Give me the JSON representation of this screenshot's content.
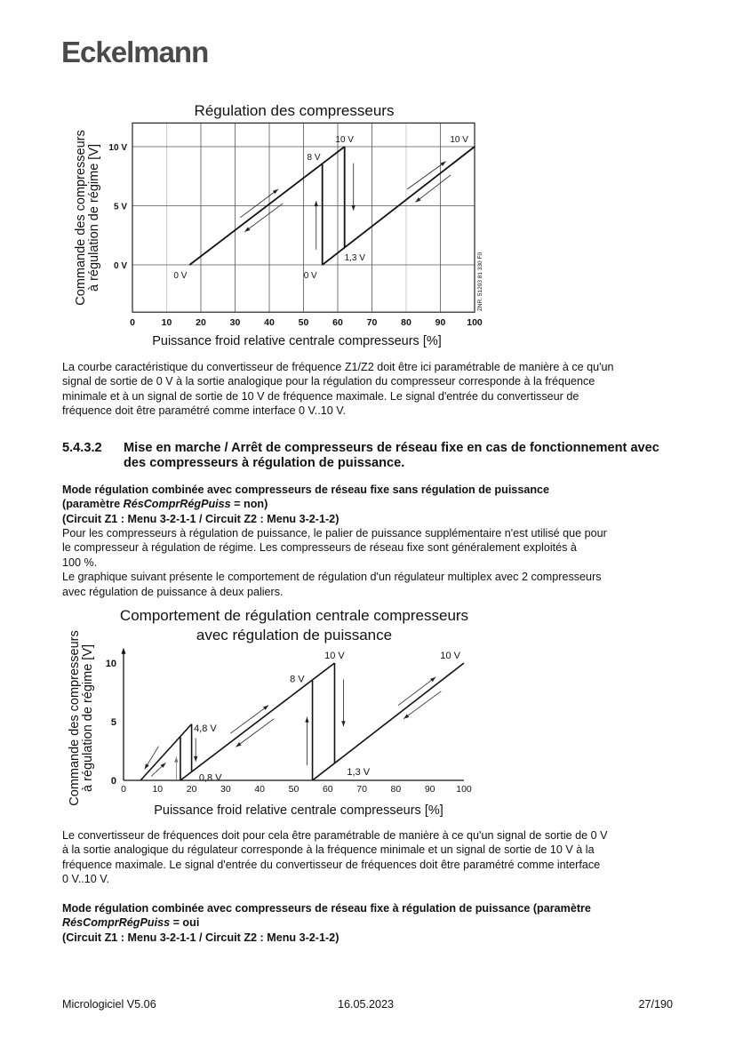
{
  "header": {
    "logo": "Eckelmann"
  },
  "para1": [
    "La courbe caractéristique du convertisseur de fréquence Z1/Z2 doit être ici paramétrable de manière à ce qu'un",
    "signal de sortie de 0 V à la sortie analogique pour la régulation du compresseur corresponde à la fréquence",
    "minimale et à un signal de sortie de 10 V de fréquence maximale. Le signal d'entrée du convertisseur de",
    "fréquence doit être paramétré comme interface 0 V..10 V."
  ],
  "section": {
    "number": "5.4.3.2",
    "title_line1": "Mise en marche / Arrêt de compresseurs de réseau fixe en cas de fonctionnement avec",
    "title_line2": "des compresseurs à régulation de puissance."
  },
  "mode1": {
    "line1": "Mode régulation combinée avec compresseurs de réseau fixe sans régulation de puissance",
    "line2_pre": "(paramètre ",
    "param": "RésComprRégPuiss",
    "line2_post": " = non)",
    "line3": "(Circuit Z1 : Menu 3-2-1-1 / Circuit Z2 : Menu 3-2-1-2)"
  },
  "para2": [
    "Pour les compresseurs à régulation de puissance, le palier de puissance supplémentaire n'est utilisé que pour",
    "le compresseur à régulation de régime. Les compresseurs de réseau fixe sont généralement exploités à",
    "100 %.",
    "Le graphique suivant présente le comportement de régulation d'un régulateur multiplex avec 2 compresseurs",
    "avec régulation de puissance à deux paliers."
  ],
  "para3": [
    "Le convertisseur de fréquences doit pour cela être paramétrable de manière à ce qu'un signal de sortie de 0 V",
    "à la sortie analogique du régulateur corresponde à la fréquence minimale et un signal de sortie de 10 V à la",
    "fréquence maximale. Le signal d'entrée du convertisseur de fréquences doit être paramétré comme interface",
    "0 V..10 V."
  ],
  "mode2": {
    "line1": "Mode régulation combinée avec compresseurs de réseau fixe à régulation de puissance (paramètre",
    "param": "RésComprRégPuiss",
    "line2_post": " = oui",
    "line3": "(Circuit Z1 : Menu 3-2-1-1 / Circuit Z2 : Menu 3-2-1-2)"
  },
  "footer": {
    "left": "Micrologiciel V5.06",
    "center": "16.05.2023",
    "right": "27/190"
  },
  "chart_data": [
    {
      "type": "line",
      "title": "Régulation des compresseurs",
      "xlabel": "Puissance froid relative centrale compresseurs [%]",
      "ylabel": [
        "Commande des compresseurs",
        "à régulation de régime [V]"
      ],
      "xlim": [
        0,
        100
      ],
      "ylim": [
        -4,
        12
      ],
      "xticks": [
        "0",
        "10",
        "20",
        "30",
        "40",
        "50",
        "60",
        "70",
        "80",
        "90",
        "100"
      ],
      "yticks": [
        {
          "v": 10,
          "label": "10 V"
        },
        {
          "v": 5,
          "label": "5 V"
        },
        {
          "v": 0,
          "label": "0 V"
        }
      ],
      "grid": true,
      "code": "ZNR. 51203 81 330 F0",
      "segments": [
        [
          [
            16.7,
            0
          ],
          [
            62,
            10
          ]
        ],
        [
          [
            55.5,
            8.5
          ],
          [
            55.5,
            0
          ]
        ],
        [
          [
            55.5,
            0
          ],
          [
            100,
            10
          ]
        ],
        [
          [
            62,
            10
          ],
          [
            62,
            1.5
          ]
        ]
      ],
      "arrows": [
        [
          [
            31.5,
            4.0
          ],
          [
            42.6,
            6.4
          ]
        ],
        [
          [
            44,
            5.2
          ],
          [
            32.8,
            2.8
          ]
        ],
        [
          [
            53.7,
            1.3
          ],
          [
            53.7,
            5.4
          ]
        ],
        [
          [
            64.6,
            8.6
          ],
          [
            64.6,
            4.6
          ]
        ],
        [
          [
            80.3,
            6.4
          ],
          [
            91.6,
            8.75
          ]
        ],
        [
          [
            93,
            7.6
          ],
          [
            82.7,
            5.3
          ]
        ]
      ],
      "annotations": [
        {
          "x": 62,
          "y": 10.6,
          "text": "10 V"
        },
        {
          "x": 95.5,
          "y": 10.6,
          "text": "10 V"
        },
        {
          "x": 53,
          "y": 9.1,
          "text": "8 V"
        },
        {
          "x": 65,
          "y": 0.6,
          "text": "1,3 V"
        },
        {
          "x": 14,
          "y": -0.9,
          "text": "0 V"
        },
        {
          "x": 52,
          "y": -0.9,
          "text": "0 V"
        }
      ]
    },
    {
      "type": "line",
      "title": [
        "Comportement de régulation centrale compresseurs",
        "avec régulation de puissance"
      ],
      "xlabel": "Puissance froid relative centrale compresseurs [%]",
      "ylabel": [
        "Commande des compresseurs",
        "à régulation de régime [V]"
      ],
      "xlim": [
        0,
        100
      ],
      "ylim": [
        0,
        11
      ],
      "xticks": [
        "0",
        "10",
        "20",
        "30",
        "40",
        "50",
        "60",
        "70",
        "80",
        "90",
        "100"
      ],
      "yticks": [
        {
          "v": 10,
          "label": "10"
        },
        {
          "v": 5,
          "label": "5"
        },
        {
          "v": 0,
          "label": "0"
        }
      ],
      "grid": false,
      "segments": [
        [
          [
            5,
            0
          ],
          [
            20,
            4.8
          ]
        ],
        [
          [
            16.7,
            3.7
          ],
          [
            16.7,
            0
          ]
        ],
        [
          [
            20,
            4.8
          ],
          [
            20,
            0.8
          ]
        ],
        [
          [
            16.7,
            0
          ],
          [
            62,
            10
          ]
        ],
        [
          [
            55.5,
            8.5
          ],
          [
            55.5,
            0
          ]
        ],
        [
          [
            55.5,
            0
          ],
          [
            100,
            10
          ]
        ],
        [
          [
            62,
            10
          ],
          [
            62,
            1.5
          ]
        ]
      ],
      "arrows": [
        [
          [
            10.3,
            2.9
          ],
          [
            6.2,
            0.96
          ]
        ],
        [
          [
            8.1,
            0.33
          ],
          [
            12.4,
            1.5
          ]
        ],
        [
          [
            15.5,
            0
          ],
          [
            15.5,
            2.0
          ]
        ],
        [
          [
            21.2,
            3.6
          ],
          [
            21.2,
            1.6
          ]
        ],
        [
          [
            31.4,
            4.0
          ],
          [
            42.6,
            6.4
          ]
        ],
        [
          [
            44.2,
            5.25
          ],
          [
            33,
            2.85
          ]
        ],
        [
          [
            53.9,
            1.3
          ],
          [
            53.9,
            5.4
          ]
        ],
        [
          [
            64.6,
            8.6
          ],
          [
            64.6,
            4.6
          ]
        ],
        [
          [
            80.7,
            6.4
          ],
          [
            91.7,
            8.8
          ]
        ],
        [
          [
            93.3,
            7.6
          ],
          [
            82.3,
            5.25
          ]
        ]
      ],
      "annotations": [
        {
          "x": 62,
          "y": 10.6,
          "text": "10 V"
        },
        {
          "x": 96,
          "y": 10.6,
          "text": "10 V"
        },
        {
          "x": 51,
          "y": 8.6,
          "text": "8 V"
        },
        {
          "x": 24,
          "y": 4.4,
          "text": "4,8 V"
        },
        {
          "x": 25.5,
          "y": 0.2,
          "text": "0,8 V"
        },
        {
          "x": 69,
          "y": 0.7,
          "text": "1,3 V"
        }
      ]
    }
  ]
}
